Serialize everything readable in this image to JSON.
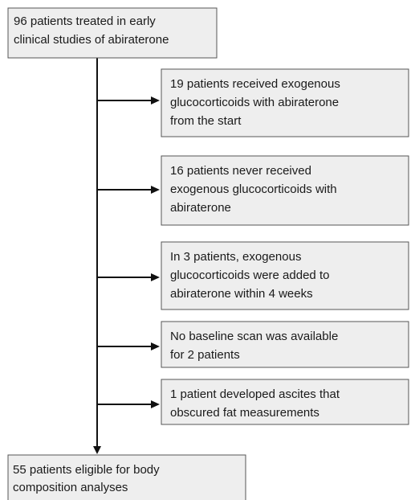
{
  "nodes": [
    {
      "lines": [
        "96 patients treated in early",
        "clinical studies of abiraterone"
      ]
    },
    {
      "lines": [
        "19 patients received exogenous",
        "glucocorticoids with abiraterone",
        "from the start"
      ]
    },
    {
      "lines": [
        "16 patients never received",
        "exogenous glucocorticoids with",
        "abiraterone"
      ]
    },
    {
      "lines": [
        "In 3 patients, exogenous",
        "glucocorticoids were added to",
        "abiraterone within 4 weeks"
      ]
    },
    {
      "lines": [
        "No baseline scan was available",
        "for 2 patients"
      ]
    },
    {
      "lines": [
        "1 patient developed ascites that",
        "obscured fat measurements"
      ]
    },
    {
      "lines": [
        "55 patients eligible for body",
        "composition analyses"
      ]
    }
  ]
}
